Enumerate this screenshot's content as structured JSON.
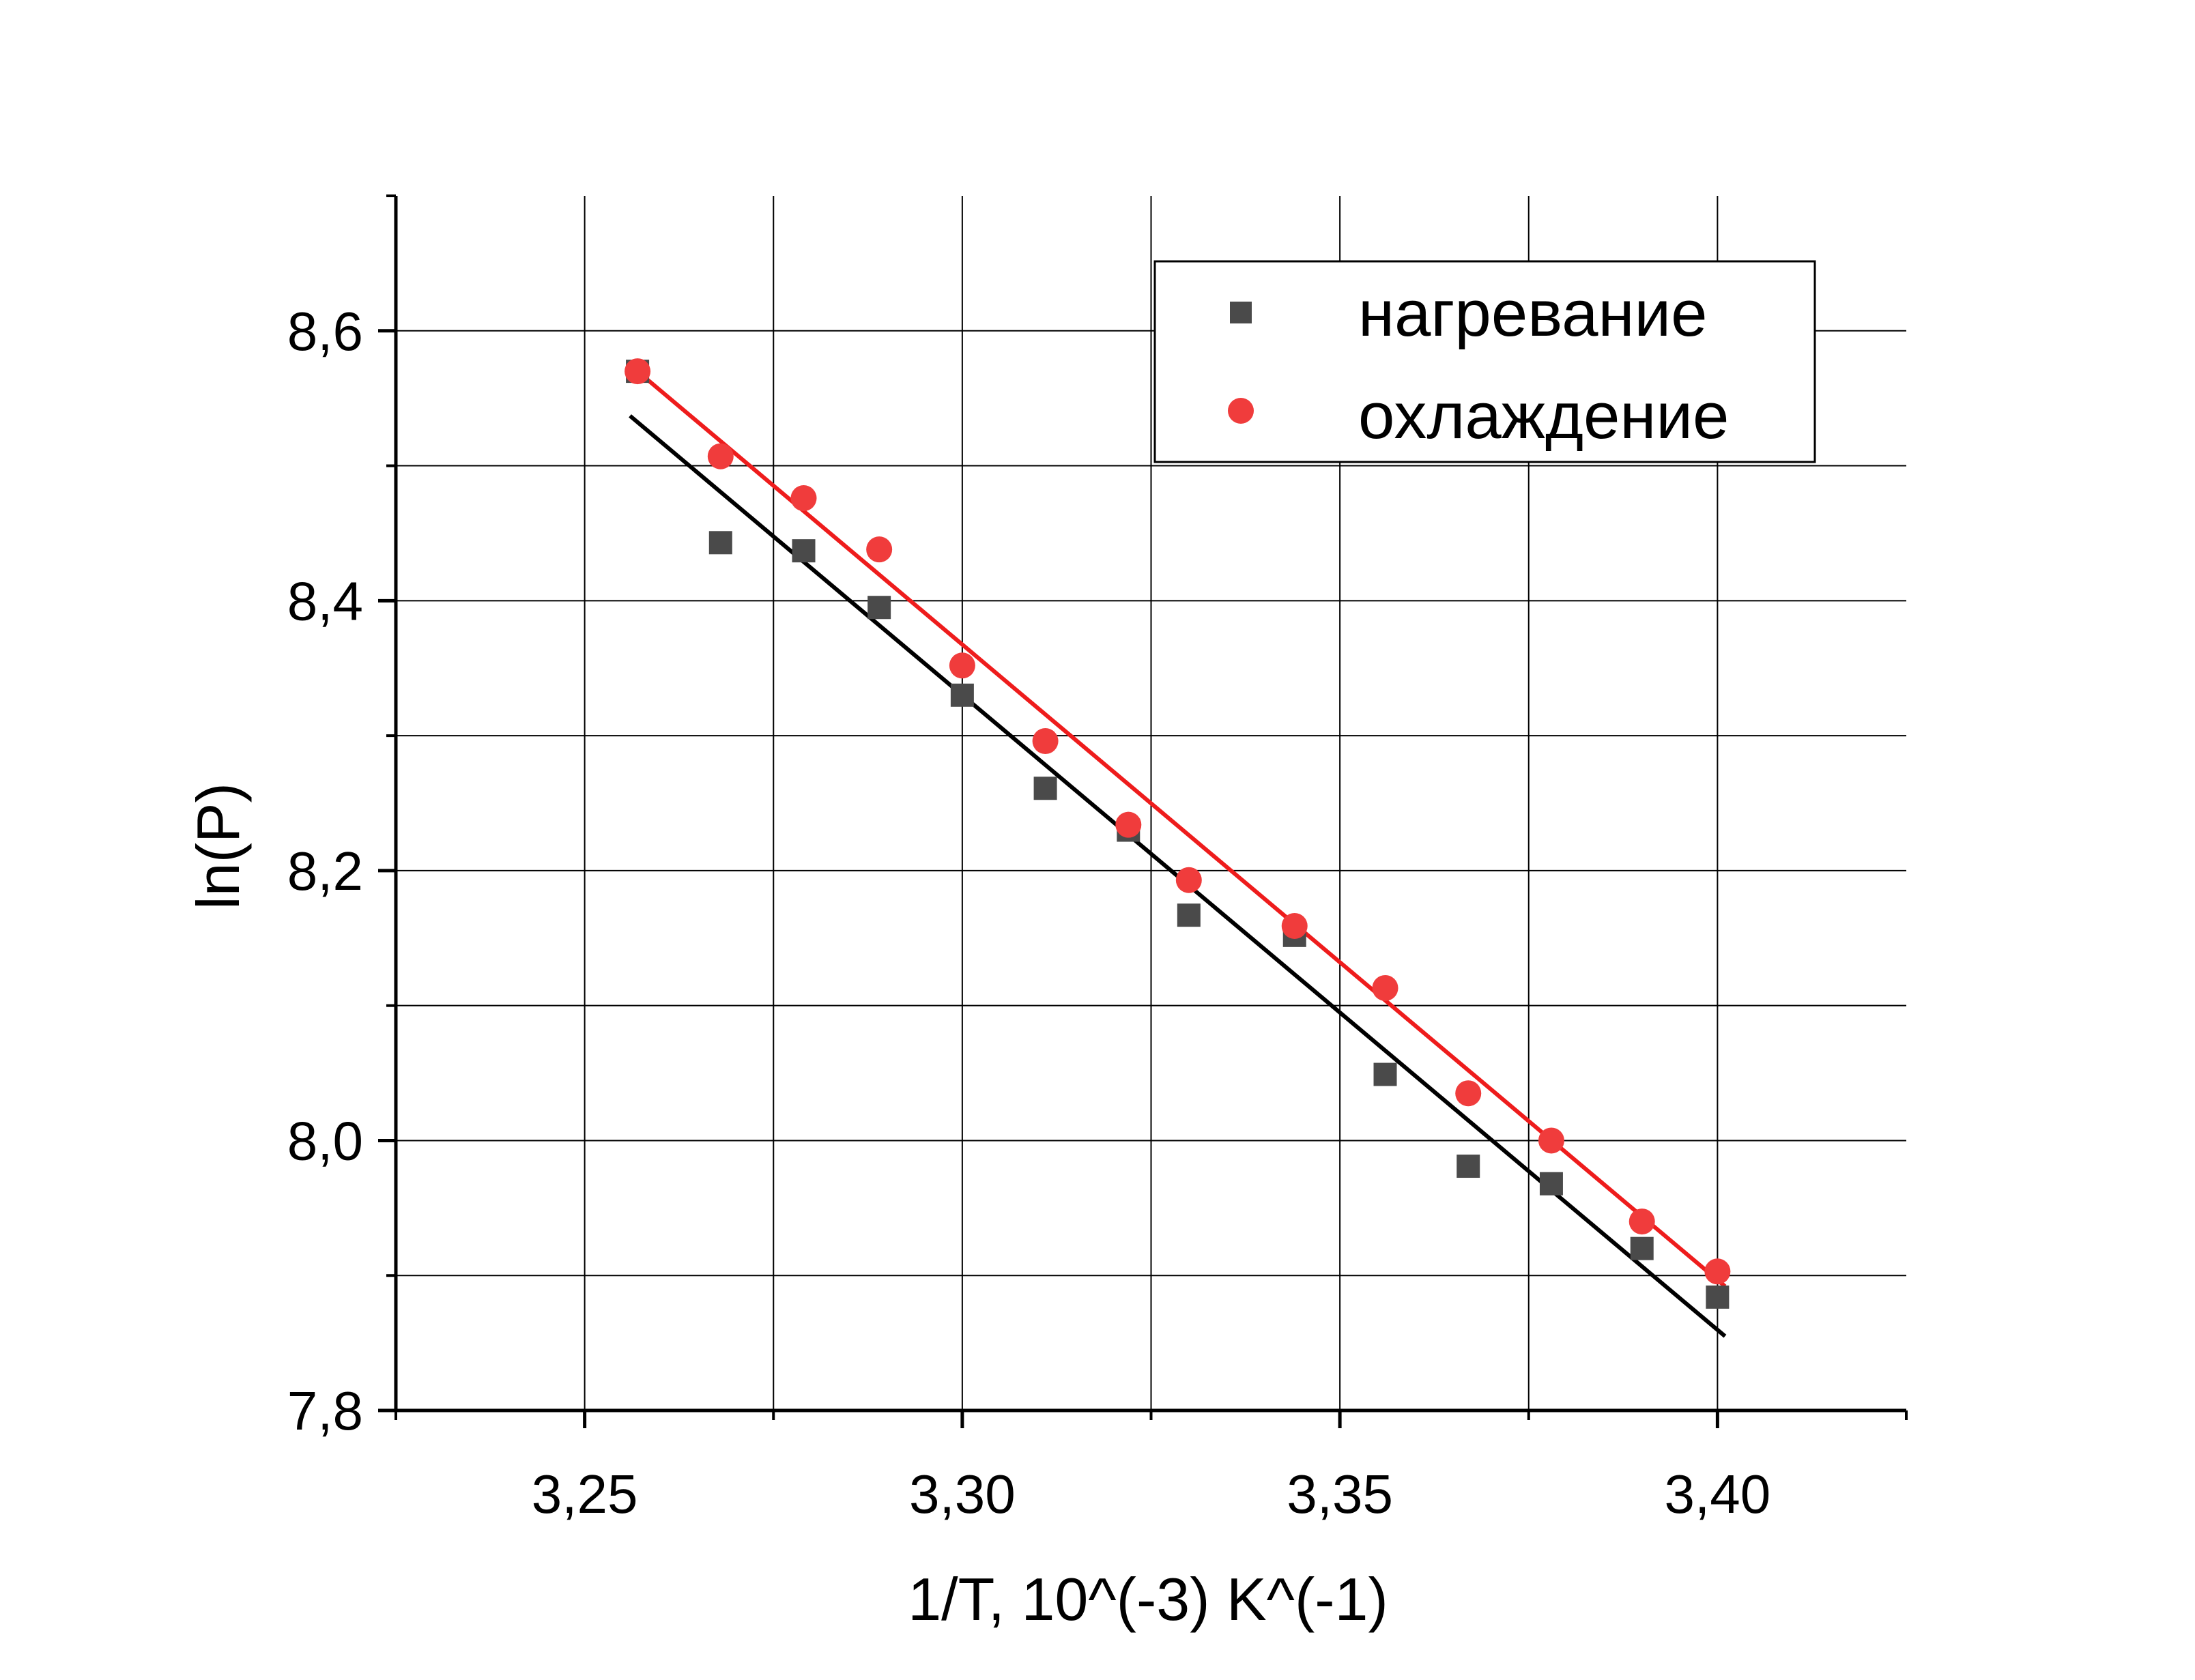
{
  "chart_data": {
    "type": "scatter",
    "title": "",
    "xlabel": "1/T, 10^(-3) K^(-1)",
    "ylabel": "ln(P)",
    "xlim": [
      3.225,
      3.425
    ],
    "ylim": [
      7.8,
      8.7
    ],
    "x_ticks": [
      3.25,
      3.3,
      3.35,
      3.4
    ],
    "x_tick_labels": [
      "3,25",
      "3,30",
      "3,35",
      "3,40"
    ],
    "y_ticks": [
      7.8,
      8.0,
      8.2,
      8.4,
      8.6
    ],
    "y_tick_labels": [
      "7,8",
      "8,0",
      "8,2",
      "8,4",
      "8,6"
    ],
    "grid": true,
    "legend_position": "top-right",
    "series": [
      {
        "name": "нагревание",
        "marker": "square",
        "color": "#4a4a4a",
        "fit_color": "#000000",
        "x": [
          3.257,
          3.268,
          3.279,
          3.289,
          3.3,
          3.311,
          3.322,
          3.33,
          3.344,
          3.356,
          3.367,
          3.378,
          3.39,
          3.4
        ],
        "y": [
          8.57,
          8.443,
          8.437,
          8.395,
          8.33,
          8.261,
          8.23,
          8.167,
          8.152,
          8.049,
          7.981,
          7.968,
          7.92,
          7.884
        ],
        "fit": [
          [
            3.256,
            8.537
          ],
          [
            3.401,
            7.855
          ]
        ]
      },
      {
        "name": "охлаждение",
        "marker": "circle",
        "color": "#f03c3c",
        "fit_color": "#ee1c1c",
        "x": [
          3.257,
          3.268,
          3.279,
          3.289,
          3.3,
          3.311,
          3.322,
          3.33,
          3.344,
          3.356,
          3.367,
          3.378,
          3.39,
          3.4
        ],
        "y": [
          8.57,
          8.507,
          8.476,
          8.438,
          8.352,
          8.296,
          8.234,
          8.193,
          8.159,
          8.113,
          8.035,
          8.0,
          7.94,
          7.903
        ],
        "fit": [
          [
            3.257,
            8.57
          ],
          [
            3.401,
            7.892
          ]
        ]
      }
    ]
  }
}
